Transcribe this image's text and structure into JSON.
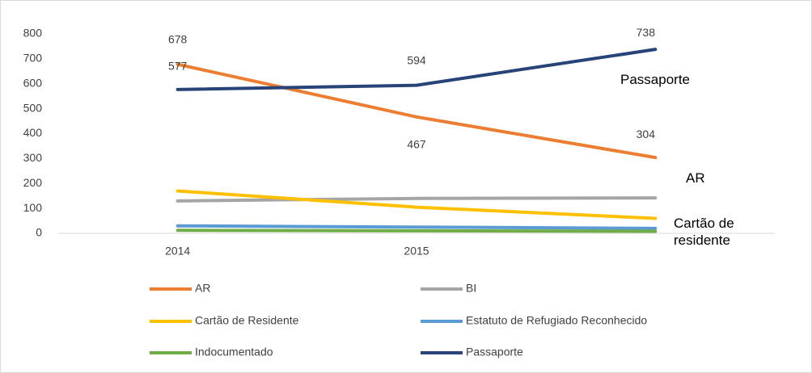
{
  "chart_data": {
    "type": "line",
    "categories": [
      "2014",
      "2015",
      null
    ],
    "series": [
      {
        "name": "AR",
        "color": "#ed7d31",
        "values": [
          678,
          467,
          304
        ]
      },
      {
        "name": "BI",
        "color": "#a5a5a5",
        "values": [
          130,
          140,
          142
        ]
      },
      {
        "name": "Cartão de Residente",
        "color": "#ffc000",
        "values": [
          170,
          105,
          60
        ]
      },
      {
        "name": "Estatuto de Refugiado Reconhecido",
        "color": "#5b9bd5",
        "values": [
          30,
          25,
          20
        ]
      },
      {
        "name": "Indocumentado",
        "color": "#70ad47",
        "values": [
          12,
          10,
          8
        ]
      },
      {
        "name": "Passaporte",
        "color": "#264478",
        "values": [
          577,
          594,
          738
        ]
      }
    ],
    "ylim": [
      0,
      800
    ],
    "yticks": [
      0,
      100,
      200,
      300,
      400,
      500,
      600,
      700,
      800
    ],
    "grid": false,
    "annotations": [
      "Passaporte",
      "AR",
      "Cartão de residente"
    ]
  }
}
